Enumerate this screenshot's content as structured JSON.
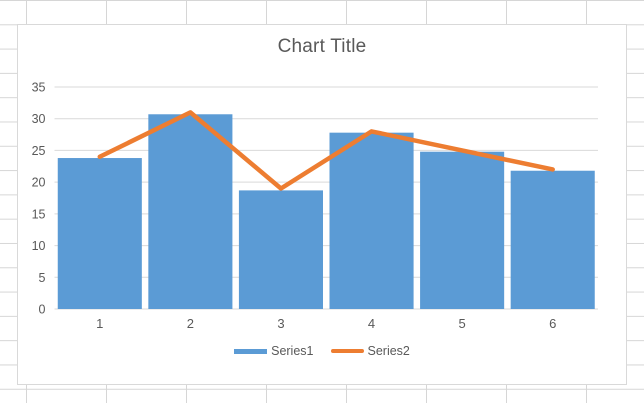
{
  "colors": {
    "bar": "#5B9BD5",
    "line": "#ED7D31",
    "text": "#595959",
    "gridline": "#D9D9D9",
    "axis_line": "#D9D9D9",
    "chart_border": "#D9D9D9",
    "chart_background": "#FFFFFF",
    "worksheet_gridline": "#D6D6D6"
  },
  "chart_data": {
    "type": "combo",
    "title": "Chart Title",
    "categories": [
      "1",
      "2",
      "3",
      "4",
      "5",
      "6"
    ],
    "series": [
      {
        "name": "Series1",
        "type": "bar",
        "color": "#5B9BD5",
        "values": [
          23.8,
          30.7,
          18.7,
          27.8,
          24.8,
          21.8
        ]
      },
      {
        "name": "Series2",
        "type": "line",
        "color": "#ED7D31",
        "values": [
          24,
          31,
          19,
          28,
          25,
          22
        ]
      }
    ],
    "ylim": [
      0,
      35
    ],
    "yticks": [
      0,
      5,
      10,
      15,
      20,
      25,
      30,
      35
    ],
    "grid": true,
    "legend_position": "bottom"
  }
}
